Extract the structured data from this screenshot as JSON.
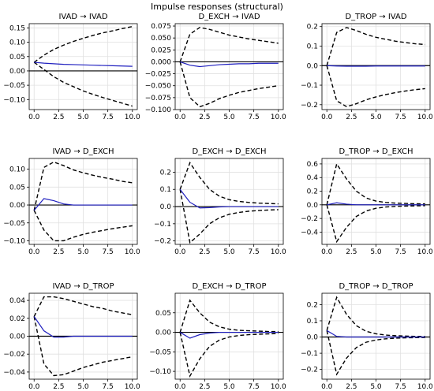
{
  "title": "Impulse responses (structural)",
  "colors": {
    "irf": "#1f1fbf",
    "band": "#000000",
    "zero": "#000000",
    "grid": "#e0e0e0"
  },
  "chart_data": [
    {
      "type": "line",
      "title": "IVAD → IVAD",
      "xlim": [
        -0.5,
        10.5
      ],
      "xticks": [
        "0.0",
        "2.5",
        "5.0",
        "7.5",
        "10.0"
      ],
      "ylim": [
        -0.135,
        0.165
      ],
      "yticks": [
        -0.1,
        -0.05,
        0.0,
        0.05,
        0.1,
        0.15
      ],
      "ytick_labels": [
        "−0.10",
        "−0.05",
        "0.00",
        "0.05",
        "0.10",
        "0.15"
      ],
      "x": [
        0,
        1,
        2,
        3,
        4,
        5,
        6,
        7,
        8,
        9,
        10
      ],
      "irf": [
        0.03,
        0.027,
        0.025,
        0.023,
        0.022,
        0.021,
        0.02,
        0.019,
        0.018,
        0.017,
        0.016
      ],
      "upper": [
        0.03,
        0.055,
        0.075,
        0.09,
        0.103,
        0.114,
        0.124,
        0.133,
        0.14,
        0.148,
        0.155
      ],
      "lower": [
        0.03,
        0.005,
        -0.02,
        -0.04,
        -0.055,
        -0.07,
        -0.082,
        -0.093,
        -0.103,
        -0.113,
        -0.123
      ]
    },
    {
      "type": "line",
      "title": "D_EXCH → IVAD",
      "xlim": [
        -0.5,
        10.5
      ],
      "xticks": [
        "0.0",
        "2.5",
        "5.0",
        "7.5",
        "10.0"
      ],
      "ylim": [
        -0.1,
        0.08
      ],
      "yticks": [
        -0.1,
        -0.075,
        -0.05,
        -0.025,
        0.0,
        0.025,
        0.05,
        0.075
      ],
      "ytick_labels": [
        "−0.100",
        "−0.075",
        "−0.050",
        "−0.025",
        "0.000",
        "0.025",
        "0.050",
        "0.075"
      ],
      "x": [
        0,
        1,
        2,
        3,
        4,
        5,
        6,
        7,
        8,
        9,
        10
      ],
      "irf": [
        0.0,
        -0.007,
        -0.01,
        -0.008,
        -0.006,
        -0.005,
        -0.004,
        -0.004,
        -0.003,
        -0.003,
        -0.003
      ],
      "upper": [
        0.0,
        0.058,
        0.072,
        0.068,
        0.062,
        0.056,
        0.052,
        0.048,
        0.045,
        0.042,
        0.039
      ],
      "lower": [
        0.0,
        -0.075,
        -0.094,
        -0.087,
        -0.077,
        -0.07,
        -0.064,
        -0.06,
        -0.056,
        -0.053,
        -0.05
      ]
    },
    {
      "type": "line",
      "title": "D_TROP → IVAD",
      "xlim": [
        -0.5,
        10.5
      ],
      "xticks": [
        "0.0",
        "2.5",
        "5.0",
        "7.5",
        "10.0"
      ],
      "ylim": [
        -0.225,
        0.215
      ],
      "yticks": [
        -0.2,
        -0.1,
        0.0,
        0.1,
        0.2
      ],
      "ytick_labels": [
        "−0.2",
        "−0.1",
        "0.0",
        "0.1",
        "0.2"
      ],
      "x": [
        0,
        1,
        2,
        3,
        4,
        5,
        6,
        7,
        8,
        9,
        10
      ],
      "irf": [
        0.0,
        -0.002,
        -0.003,
        -0.003,
        -0.003,
        -0.002,
        -0.002,
        -0.002,
        -0.002,
        -0.002,
        -0.002
      ],
      "upper": [
        0.0,
        0.17,
        0.195,
        0.18,
        0.16,
        0.145,
        0.135,
        0.125,
        0.118,
        0.112,
        0.108
      ],
      "lower": [
        0.0,
        -0.18,
        -0.21,
        -0.195,
        -0.175,
        -0.16,
        -0.148,
        -0.138,
        -0.13,
        -0.123,
        -0.118
      ]
    },
    {
      "type": "line",
      "title": "IVAD → D_EXCH",
      "xlim": [
        -0.5,
        10.5
      ],
      "xticks": [
        "0.0",
        "2.5",
        "5.0",
        "7.5",
        "10.0"
      ],
      "ylim": [
        -0.11,
        0.13
      ],
      "yticks": [
        -0.1,
        -0.05,
        0.0,
        0.05,
        0.1
      ],
      "ytick_labels": [
        "−0.10",
        "−0.05",
        "0.00",
        "0.05",
        "0.10"
      ],
      "x": [
        0,
        1,
        2,
        3,
        4,
        5,
        6,
        7,
        8,
        9,
        10
      ],
      "irf": [
        -0.015,
        0.018,
        0.012,
        0.003,
        0.0,
        0.0,
        0.0,
        0.0,
        0.0,
        0.0,
        0.0
      ],
      "upper": [
        -0.015,
        0.105,
        0.12,
        0.11,
        0.098,
        0.09,
        0.083,
        0.077,
        0.072,
        0.066,
        0.062
      ],
      "lower": [
        -0.015,
        -0.07,
        -0.1,
        -0.1,
        -0.09,
        -0.082,
        -0.076,
        -0.071,
        -0.066,
        -0.062,
        -0.058
      ]
    },
    {
      "type": "line",
      "title": "D_EXCH → D_EXCH",
      "xlim": [
        -0.5,
        10.5
      ],
      "xticks": [
        "0.0",
        "2.5",
        "5.0",
        "7.5",
        "10.0"
      ],
      "ylim": [
        -0.22,
        0.28
      ],
      "yticks": [
        -0.2,
        -0.1,
        0.0,
        0.1,
        0.2
      ],
      "ytick_labels": [
        "−0.2",
        "−0.1",
        "0.0",
        "0.1",
        "0.2"
      ],
      "x": [
        0,
        1,
        2,
        3,
        4,
        5,
        6,
        7,
        8,
        9,
        10
      ],
      "irf": [
        0.1,
        0.025,
        -0.008,
        -0.006,
        -0.002,
        0.0,
        0.0,
        0.0,
        0.0,
        0.0,
        0.0
      ],
      "upper": [
        0.1,
        0.255,
        0.17,
        0.1,
        0.06,
        0.04,
        0.03,
        0.024,
        0.02,
        0.018,
        0.016
      ],
      "lower": [
        0.1,
        -0.21,
        -0.16,
        -0.1,
        -0.065,
        -0.045,
        -0.034,
        -0.027,
        -0.023,
        -0.02,
        -0.018
      ]
    },
    {
      "type": "line",
      "title": "D_TROP → D_EXCH",
      "xlim": [
        -0.5,
        10.5
      ],
      "xticks": [
        "0.0",
        "2.5",
        "5.0",
        "7.5",
        "10.0"
      ],
      "ylim": [
        -0.58,
        0.68
      ],
      "yticks": [
        -0.4,
        -0.2,
        0.0,
        0.2,
        0.4,
        0.6
      ],
      "ytick_labels": [
        "−0.4",
        "−0.2",
        "0.0",
        "0.2",
        "0.4",
        "0.6"
      ],
      "x": [
        0,
        1,
        2,
        3,
        4,
        5,
        6,
        7,
        8,
        9,
        10
      ],
      "irf": [
        0.0,
        0.03,
        0.01,
        0.0,
        0.0,
        0.0,
        0.0,
        0.0,
        0.0,
        0.0,
        0.0
      ],
      "upper": [
        0.0,
        0.6,
        0.38,
        0.2,
        0.1,
        0.055,
        0.035,
        0.025,
        0.02,
        0.016,
        0.014
      ],
      "lower": [
        0.0,
        -0.54,
        -0.33,
        -0.17,
        -0.09,
        -0.05,
        -0.032,
        -0.023,
        -0.018,
        -0.015,
        -0.013
      ]
    },
    {
      "type": "line",
      "title": "IVAD → D_TROP",
      "xlim": [
        -0.5,
        10.5
      ],
      "xticks": [
        "0.0",
        "2.5",
        "5.0",
        "7.5",
        "10.0"
      ],
      "ylim": [
        -0.048,
        0.048
      ],
      "yticks": [
        -0.04,
        -0.02,
        0.0,
        0.02,
        0.04
      ],
      "ytick_labels": [
        "−0.04",
        "−0.02",
        "0.00",
        "0.02",
        "0.04"
      ],
      "x": [
        0,
        1,
        2,
        3,
        4,
        5,
        6,
        7,
        8,
        9,
        10
      ],
      "irf": [
        0.022,
        0.006,
        -0.001,
        -0.001,
        0.0,
        0.0,
        0.0,
        0.0,
        0.0,
        0.0,
        0.0
      ],
      "upper": [
        0.022,
        0.044,
        0.044,
        0.042,
        0.039,
        0.036,
        0.033,
        0.031,
        0.028,
        0.026,
        0.024
      ],
      "lower": [
        0.022,
        -0.031,
        -0.044,
        -0.043,
        -0.039,
        -0.035,
        -0.032,
        -0.029,
        -0.027,
        -0.025,
        -0.023
      ]
    },
    {
      "type": "line",
      "title": "D_EXCH → D_TROP",
      "xlim": [
        -0.5,
        10.5
      ],
      "xticks": [
        "0.0",
        "2.5",
        "5.0",
        "7.5",
        "10.0"
      ],
      "ylim": [
        -0.12,
        0.1
      ],
      "yticks": [
        -0.1,
        -0.05,
        0.0,
        0.05
      ],
      "ytick_labels": [
        "−0.10",
        "−0.05",
        "0.00",
        "0.05"
      ],
      "x": [
        0,
        1,
        2,
        3,
        4,
        5,
        6,
        7,
        8,
        9,
        10
      ],
      "irf": [
        0.0,
        -0.015,
        -0.006,
        -0.002,
        0.0,
        0.0,
        0.0,
        0.0,
        0.0,
        0.0,
        0.0
      ],
      "upper": [
        0.0,
        0.082,
        0.05,
        0.026,
        0.014,
        0.008,
        0.005,
        0.004,
        0.003,
        0.002,
        0.002
      ],
      "lower": [
        0.0,
        -0.112,
        -0.068,
        -0.036,
        -0.02,
        -0.012,
        -0.008,
        -0.006,
        -0.005,
        -0.004,
        -0.003
      ]
    },
    {
      "type": "line",
      "title": "D_TROP → D_TROP",
      "xlim": [
        -0.5,
        10.5
      ],
      "xticks": [
        "0.0",
        "2.5",
        "5.0",
        "7.5",
        "10.0"
      ],
      "ylim": [
        -0.26,
        0.27
      ],
      "yticks": [
        -0.2,
        -0.1,
        0.0,
        0.1,
        0.2
      ],
      "ytick_labels": [
        "−0.2",
        "−0.1",
        "0.0",
        "0.1",
        "0.2"
      ],
      "x": [
        0,
        1,
        2,
        3,
        4,
        5,
        6,
        7,
        8,
        9,
        10
      ],
      "irf": [
        0.04,
        0.004,
        0.0,
        0.0,
        0.0,
        0.0,
        0.0,
        0.0,
        0.0,
        0.0,
        0.0
      ],
      "upper": [
        0.04,
        0.245,
        0.14,
        0.07,
        0.035,
        0.02,
        0.012,
        0.008,
        0.006,
        0.004,
        0.003
      ],
      "lower": [
        0.04,
        -0.23,
        -0.13,
        -0.065,
        -0.032,
        -0.018,
        -0.011,
        -0.007,
        -0.005,
        -0.004,
        -0.003
      ]
    }
  ]
}
